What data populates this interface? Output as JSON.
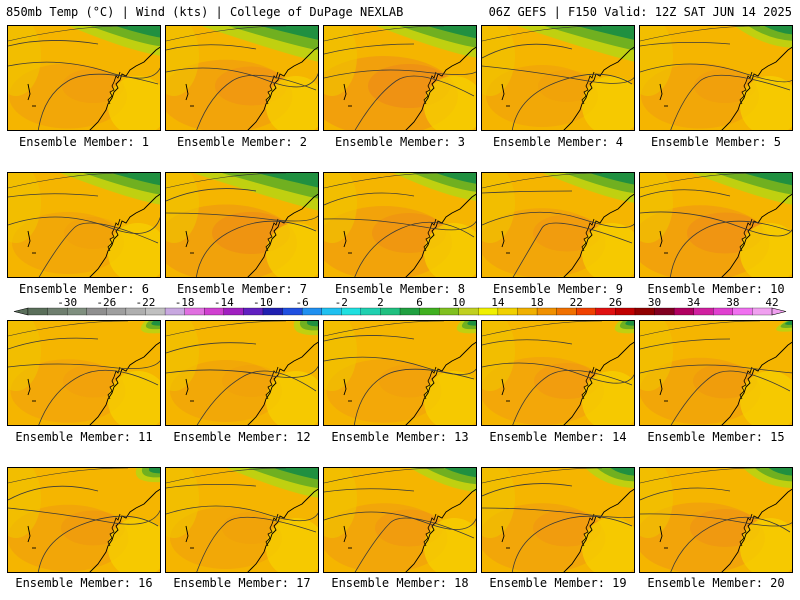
{
  "header": {
    "left": "850mb Temp (°C) | Wind (kts) | College of DuPage NEXLAB",
    "right": "06Z GEFS | F150 Valid: 12Z SAT JUN 14 2025"
  },
  "panel_label_prefix": "Ensemble Member: ",
  "members": [
    {
      "label": "Ensemble Member: 1",
      "north_green": 0.55,
      "warm": 0.3
    },
    {
      "label": "Ensemble Member: 2",
      "north_green": 0.7,
      "warm": 0.55
    },
    {
      "label": "Ensemble Member: 3",
      "north_green": 0.6,
      "warm": 0.8
    },
    {
      "label": "Ensemble Member: 4",
      "north_green": 0.7,
      "warm": 0.2
    },
    {
      "label": "Ensemble Member: 5",
      "north_green": 0.35,
      "warm": 0.3
    },
    {
      "label": "Ensemble Member: 6",
      "north_green": 0.6,
      "warm": 0.2
    },
    {
      "label": "Ensemble Member: 7",
      "north_green": 0.75,
      "warm": 0.7
    },
    {
      "label": "Ensemble Member: 8",
      "north_green": 0.5,
      "warm": 0.6
    },
    {
      "label": "Ensemble Member: 9",
      "north_green": 0.55,
      "warm": 0.45
    },
    {
      "label": "Ensemble Member: 10",
      "north_green": 0.6,
      "warm": 0.65
    },
    {
      "label": "Ensemble Member: 11",
      "north_green": 0.1,
      "warm": 0.25
    },
    {
      "label": "Ensemble Member: 12",
      "north_green": 0.15,
      "warm": 0.2
    },
    {
      "label": "Ensemble Member: 13",
      "north_green": 0.1,
      "warm": 0.25
    },
    {
      "label": "Ensemble Member: 14",
      "north_green": 0.1,
      "warm": 0.4
    },
    {
      "label": "Ensemble Member: 15",
      "north_green": 0.05,
      "warm": 0.35
    },
    {
      "label": "Ensemble Member: 16",
      "north_green": 0.15,
      "warm": 0.35
    },
    {
      "label": "Ensemble Member: 17",
      "north_green": 0.55,
      "warm": 0.2
    },
    {
      "label": "Ensemble Member: 18",
      "north_green": 0.4,
      "warm": 0.45
    },
    {
      "label": "Ensemble Member: 19",
      "north_green": 0.3,
      "warm": 0.45
    },
    {
      "label": "Ensemble Member: 20",
      "north_green": 0.3,
      "warm": 0.5
    }
  ],
  "colorbar": {
    "ticks": [
      "-30",
      "-26",
      "-22",
      "-18",
      "-14",
      "-10",
      "-6",
      "-2",
      "2",
      "6",
      "10",
      "14",
      "18",
      "22",
      "26",
      "30",
      "34",
      "38",
      "42"
    ],
    "colors": [
      "#5a6f5a",
      "#6f7f6f",
      "#7f8f7f",
      "#8f8f8f",
      "#9f9f9f",
      "#afafaf",
      "#c0c0c0",
      "#c8a8e0",
      "#e070e0",
      "#d040d0",
      "#a020c0",
      "#6020c0",
      "#2020b0",
      "#2050e0",
      "#2090f0",
      "#20c0f0",
      "#20e0e0",
      "#20d0b0",
      "#20c080",
      "#20a040",
      "#40b020",
      "#80c020",
      "#c0d020",
      "#f0f000",
      "#f0d000",
      "#f0b000",
      "#f09000",
      "#f07000",
      "#f04000",
      "#e01010",
      "#c00000",
      "#900000",
      "#800020",
      "#b00060",
      "#d020a0",
      "#e040d0",
      "#f070f0",
      "#f0a0f0"
    ]
  }
}
